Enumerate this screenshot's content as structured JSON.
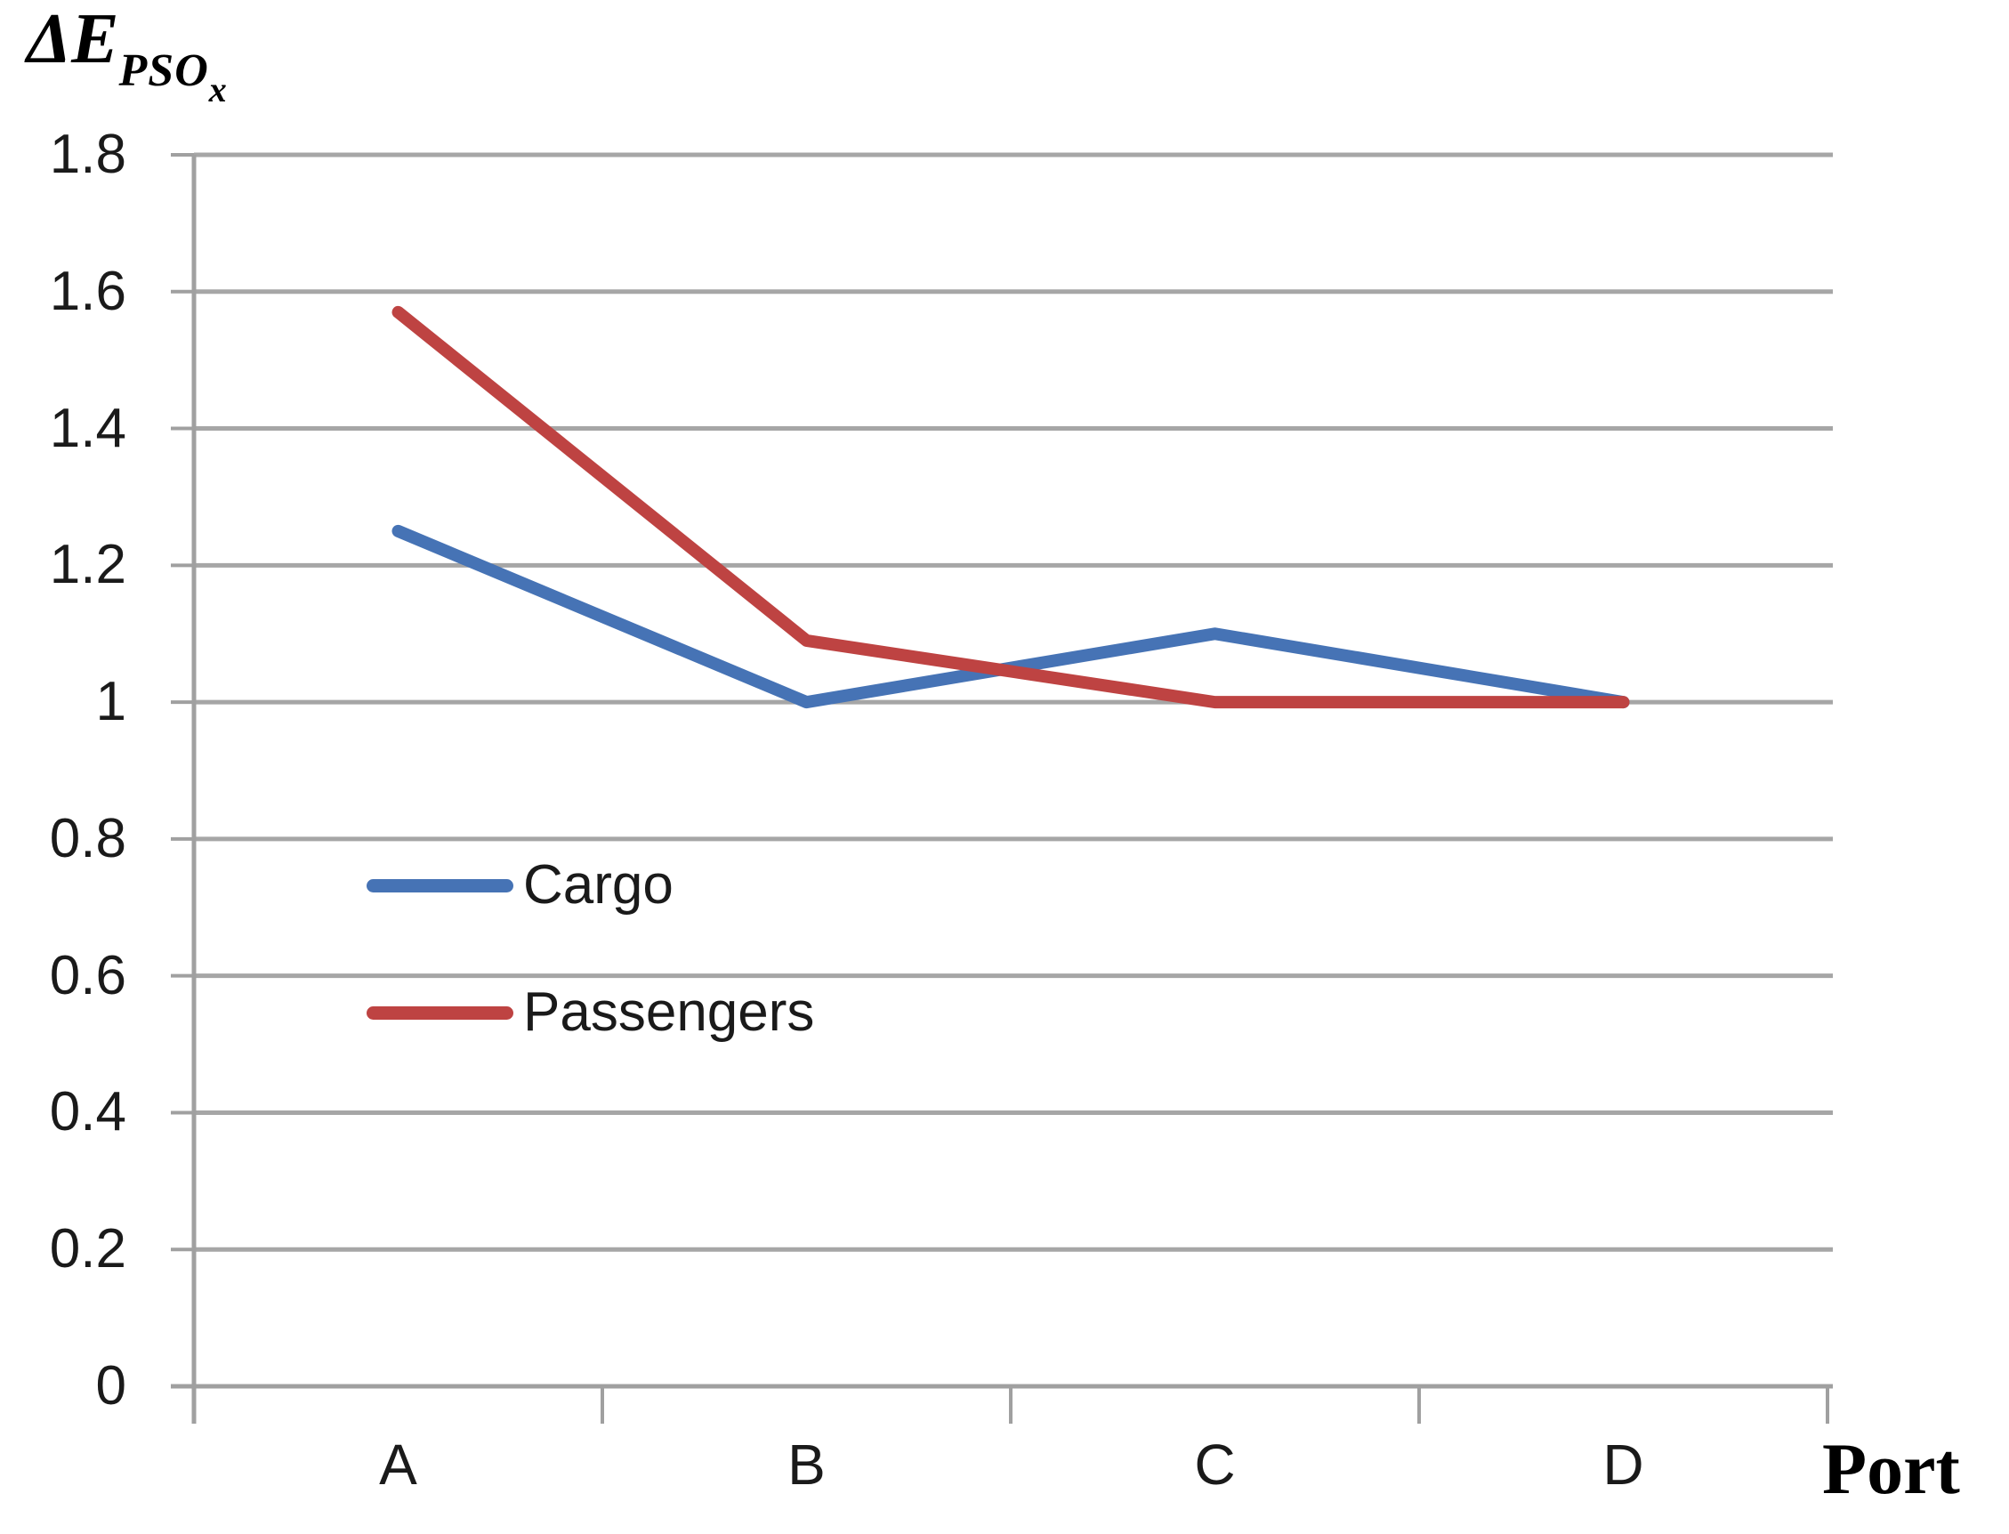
{
  "chart_data": {
    "type": "line",
    "title": "ΔE_PSO_x",
    "title_parts": {
      "main": "ΔE",
      "sub": "PSO",
      "subsub": "x"
    },
    "xlabel": "Port",
    "categories": [
      "A",
      "B",
      "C",
      "D"
    ],
    "series": [
      {
        "name": "Cargo",
        "color": "#4673B5",
        "values": [
          1.25,
          1.0,
          1.1,
          1.0
        ]
      },
      {
        "name": "Passengers",
        "color": "#BE4342",
        "values": [
          1.57,
          1.09,
          1.0,
          1.0
        ]
      }
    ],
    "y_ticks": [
      0,
      0.2,
      0.4,
      0.6,
      0.8,
      1.0,
      1.2,
      1.4,
      1.6,
      1.8
    ],
    "ylim": [
      0,
      1.8
    ],
    "grid": true,
    "legend_position": "inside-left-middle"
  },
  "colors": {
    "grid": "#A6A6A6",
    "axis": "#A0A0A0",
    "text": "#1A1A1A"
  }
}
